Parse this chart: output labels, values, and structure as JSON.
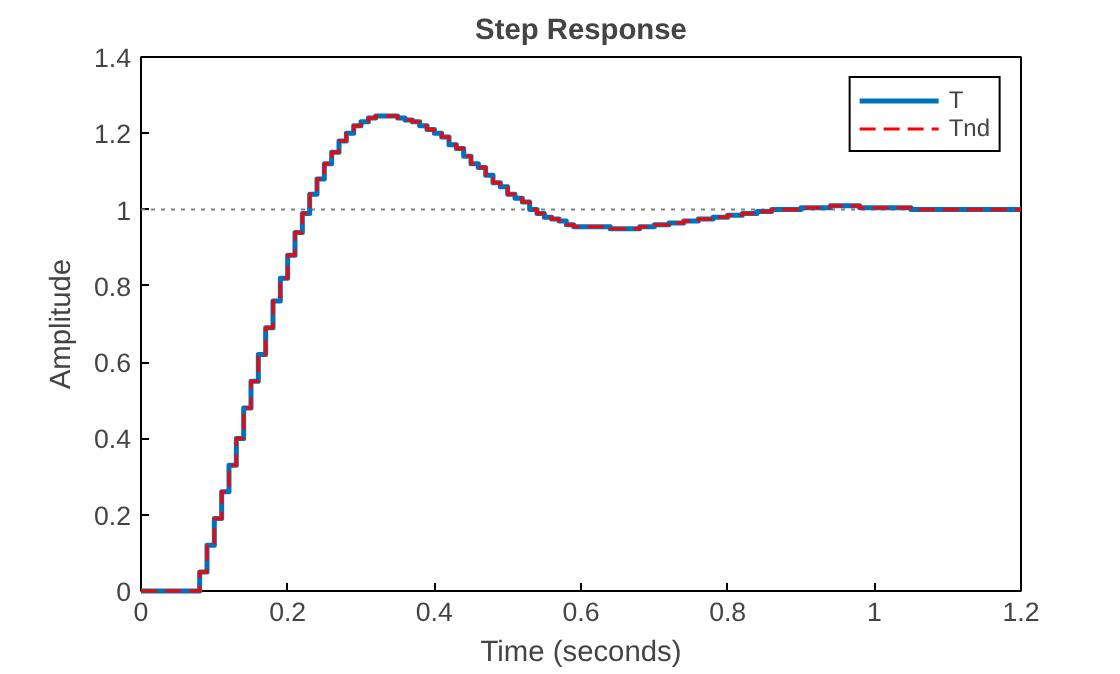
{
  "chart_data": {
    "type": "step",
    "title": "Step Response",
    "xlabel": "Time (seconds)",
    "ylabel": "Amplitude",
    "x": [
      0,
      0.01,
      0.02,
      0.03,
      0.04,
      0.05,
      0.06,
      0.07,
      0.08,
      0.09,
      0.1,
      0.11,
      0.12,
      0.13,
      0.14,
      0.15,
      0.16,
      0.17,
      0.18,
      0.19,
      0.2,
      0.21,
      0.22,
      0.23,
      0.24,
      0.25,
      0.26,
      0.27,
      0.28,
      0.29,
      0.3,
      0.31,
      0.32,
      0.33,
      0.34,
      0.35,
      0.36,
      0.37,
      0.38,
      0.39,
      0.4,
      0.41,
      0.42,
      0.43,
      0.44,
      0.45,
      0.46,
      0.47,
      0.48,
      0.49,
      0.5,
      0.51,
      0.52,
      0.53,
      0.54,
      0.55,
      0.56,
      0.57,
      0.58,
      0.59,
      0.6,
      0.62,
      0.64,
      0.66,
      0.68,
      0.7,
      0.72,
      0.74,
      0.76,
      0.78,
      0.8,
      0.82,
      0.84,
      0.86,
      0.88,
      0.9,
      0.92,
      0.94,
      0.96,
      0.98,
      1.0,
      1.05,
      1.1,
      1.15,
      1.2
    ],
    "series": [
      {
        "name": "T",
        "color": "#0072bd",
        "line_style": "solid",
        "values": [
          0,
          0,
          0,
          0,
          0,
          0,
          0,
          0,
          0.05,
          0.12,
          0.19,
          0.26,
          0.33,
          0.4,
          0.48,
          0.55,
          0.62,
          0.69,
          0.76,
          0.82,
          0.88,
          0.94,
          0.99,
          1.04,
          1.08,
          1.12,
          1.15,
          1.18,
          1.2,
          1.22,
          1.23,
          1.24,
          1.245,
          1.245,
          1.245,
          1.24,
          1.235,
          1.23,
          1.22,
          1.21,
          1.2,
          1.19,
          1.17,
          1.16,
          1.14,
          1.12,
          1.11,
          1.09,
          1.07,
          1.06,
          1.04,
          1.03,
          1.02,
          1.0,
          0.99,
          0.98,
          0.975,
          0.97,
          0.96,
          0.955,
          0.955,
          0.955,
          0.95,
          0.95,
          0.955,
          0.96,
          0.965,
          0.97,
          0.975,
          0.98,
          0.985,
          0.99,
          0.995,
          1.0,
          1.0,
          1.005,
          1.005,
          1.01,
          1.01,
          1.005,
          1.005,
          1.0,
          1.0,
          1.0,
          1.0
        ]
      },
      {
        "name": "Tnd",
        "color": "#ff0000",
        "line_style": "dashed",
        "values": [
          0,
          0,
          0,
          0,
          0,
          0,
          0,
          0,
          0.05,
          0.12,
          0.19,
          0.26,
          0.33,
          0.4,
          0.48,
          0.55,
          0.62,
          0.69,
          0.76,
          0.82,
          0.88,
          0.94,
          0.99,
          1.04,
          1.08,
          1.12,
          1.15,
          1.18,
          1.2,
          1.22,
          1.23,
          1.24,
          1.245,
          1.245,
          1.245,
          1.24,
          1.235,
          1.23,
          1.22,
          1.21,
          1.2,
          1.19,
          1.17,
          1.16,
          1.14,
          1.12,
          1.11,
          1.09,
          1.07,
          1.06,
          1.04,
          1.03,
          1.02,
          1.0,
          0.99,
          0.98,
          0.975,
          0.97,
          0.96,
          0.955,
          0.955,
          0.955,
          0.95,
          0.95,
          0.955,
          0.96,
          0.965,
          0.97,
          0.975,
          0.98,
          0.985,
          0.99,
          0.995,
          1.0,
          1.0,
          1.005,
          1.005,
          1.01,
          1.01,
          1.005,
          1.005,
          1.0,
          1.0,
          1.0,
          1.0
        ]
      }
    ],
    "xlim": [
      0,
      1.2
    ],
    "xticks": [
      0,
      0.2,
      0.4,
      0.6,
      0.8,
      1,
      1.2
    ],
    "ylim": [
      0,
      1.4
    ],
    "yticks": [
      0,
      0.2,
      0.4,
      0.6,
      0.8,
      1,
      1.2,
      1.4
    ],
    "ref_lines": [
      {
        "axis": "y",
        "value": 1,
        "label": null,
        "color": "#808080",
        "line_style": "dotted"
      }
    ],
    "grid": false,
    "legend": "top right"
  }
}
